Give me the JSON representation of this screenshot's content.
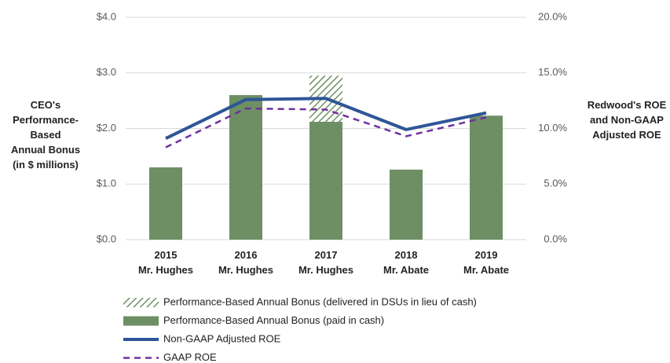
{
  "chart_data": {
    "type": "bar-line",
    "categories": [
      [
        "2015",
        "Mr. Hughes"
      ],
      [
        "2016",
        "Mr. Hughes"
      ],
      [
        "2017",
        "Mr. Hughes"
      ],
      [
        "2018",
        "Mr. Abate"
      ],
      [
        "2019",
        "Mr. Abate"
      ]
    ],
    "y_label": [
      "CEO's",
      "Performance-",
      "Based",
      "Annual Bonus",
      "(in $ millions)"
    ],
    "y2_label": [
      "Redwood's ROE",
      "and Non-GAAP",
      "Adjusted ROE"
    ],
    "ylim": [
      0,
      4
    ],
    "yticks": [
      {
        "value": 0,
        "label": "$0.0"
      },
      {
        "value": 1,
        "label": "$1.0"
      },
      {
        "value": 2,
        "label": "$2.0"
      },
      {
        "value": 3,
        "label": "$3.0"
      },
      {
        "value": 4,
        "label": "$4.0"
      }
    ],
    "y2lim": [
      0,
      20
    ],
    "y2ticks": [
      {
        "value": 0,
        "label": "0.0%"
      },
      {
        "value": 5,
        "label": "5.0%"
      },
      {
        "value": 10,
        "label": "10.0%"
      },
      {
        "value": 15,
        "label": "15.0%"
      },
      {
        "value": 20,
        "label": "20.0%"
      }
    ],
    "grid": true,
    "series": [
      {
        "name": "Performance-Based Annual Bonus (paid in cash)",
        "kind": "bar",
        "color": "#6e8f64",
        "values": [
          1.3,
          2.6,
          2.12,
          1.26,
          2.23
        ]
      },
      {
        "name": "Performance-Based Annual Bonus (delivered in DSUs in lieu of cash)",
        "kind": "bar",
        "hatch": true,
        "color": "#6e8f64",
        "values": [
          null,
          null,
          0.83,
          null,
          null
        ]
      },
      {
        "name": "Non-GAAP Adjusted ROE",
        "kind": "line",
        "axis": "y2",
        "color": "#2e5597",
        "values": [
          9.1,
          12.6,
          12.7,
          9.9,
          11.4
        ]
      },
      {
        "name": "GAAP ROE",
        "kind": "line",
        "axis": "y2",
        "dashed": true,
        "color": "#7030a0",
        "values": [
          8.3,
          11.8,
          11.7,
          9.3,
          11.0
        ]
      }
    ]
  }
}
